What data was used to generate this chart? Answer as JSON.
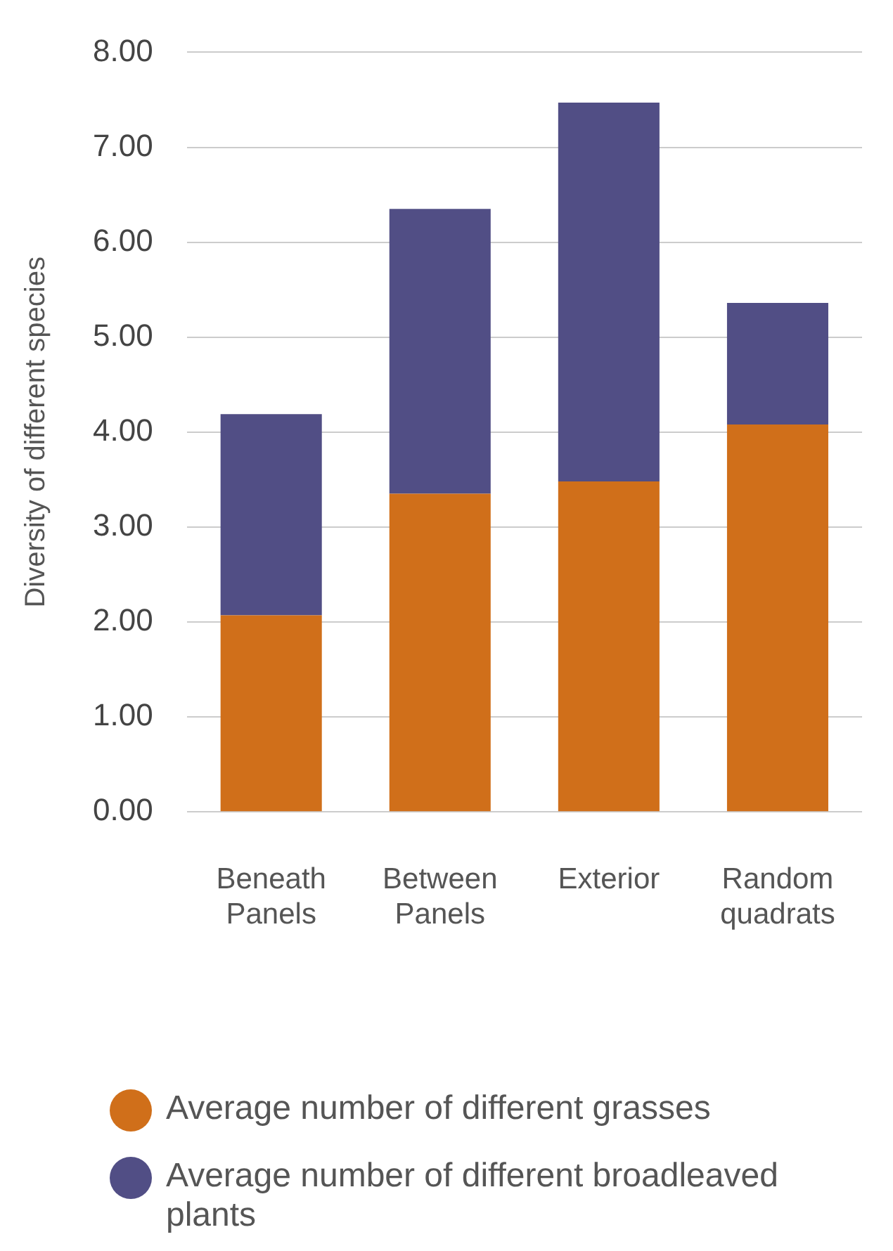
{
  "chart_data": {
    "type": "bar",
    "ylabel": "Diversity of different species",
    "categories": [
      "Beneath\nPanels",
      "Between\nPanels",
      "Exterior",
      "Random\nquadrats"
    ],
    "stacked": true,
    "series": [
      {
        "name": "Average number of different grasses",
        "color": "#d06f1a",
        "values": [
          2.07,
          3.35,
          3.48,
          4.08
        ]
      },
      {
        "name": "Average number of different broadleaved plants",
        "color": "#514e85",
        "values": [
          2.12,
          3.0,
          3.99,
          1.28
        ]
      }
    ],
    "ylim": [
      0,
      8
    ],
    "yticks": [
      {
        "value": 0,
        "label": "0.00"
      },
      {
        "value": 1,
        "label": "1.00"
      },
      {
        "value": 2,
        "label": "2.00"
      },
      {
        "value": 3,
        "label": "3.00"
      },
      {
        "value": 4,
        "label": "4.00"
      },
      {
        "value": 5,
        "label": "5.00"
      },
      {
        "value": 6,
        "label": "6.00"
      },
      {
        "value": 7,
        "label": "7.00"
      },
      {
        "value": 8,
        "label": "8.00"
      }
    ],
    "grid": "y",
    "legend": "bottom"
  }
}
